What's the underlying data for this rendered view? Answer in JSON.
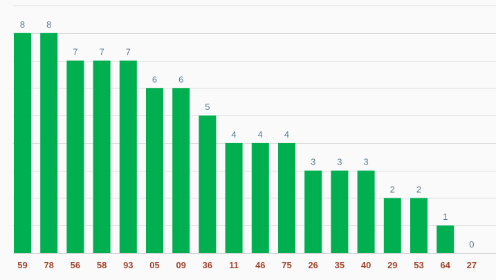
{
  "chart_data": {
    "type": "bar",
    "categories": [
      "59",
      "78",
      "56",
      "58",
      "93",
      "05",
      "09",
      "36",
      "11",
      "46",
      "75",
      "26",
      "35",
      "40",
      "29",
      "53",
      "64",
      "27"
    ],
    "values": [
      8,
      8,
      7,
      7,
      7,
      6,
      6,
      5,
      4,
      4,
      4,
      3,
      3,
      3,
      2,
      2,
      1,
      0
    ],
    "title": "",
    "xlabel": "",
    "ylabel": "",
    "ylim": [
      0,
      9
    ],
    "grid": true,
    "legend": "none",
    "colors": {
      "bar": "#00b050",
      "value_label": "#5a7a8a",
      "category_label": "#a0442c",
      "grid": "#dcdcdc",
      "background": "#fafafa"
    }
  }
}
